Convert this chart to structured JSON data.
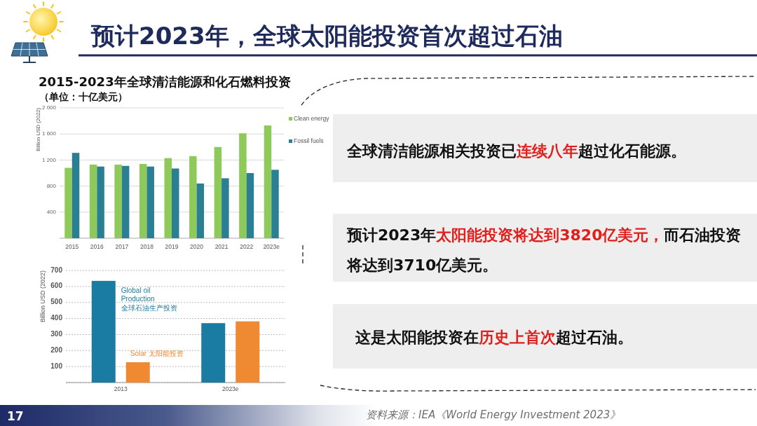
{
  "chart_data": [
    {
      "type": "other",
      "title": "预计2023年，全球太阳能投资首次超过石油",
      "annotations": [
        "17",
        "资料来源：IEA《World Energy Investment 2023》"
      ]
    },
    {
      "type": "bar",
      "title": "2015-2023年全球清洁能源和化石燃料投资",
      "subtitle": "（单位：十亿美元）",
      "ylabel": "Billion USD (2022)",
      "categories": [
        "2015",
        "2016",
        "2017",
        "2018",
        "2019",
        "2020",
        "2021",
        "2022",
        "2023e"
      ],
      "series": [
        {
          "name": "Clean energy",
          "color": "#8dca5a",
          "values": [
            1080,
            1130,
            1130,
            1140,
            1230,
            1260,
            1400,
            1610,
            1730
          ]
        },
        {
          "name": "Fossil fuels",
          "color": "#2b7f93",
          "values": [
            1310,
            1100,
            1110,
            1100,
            1070,
            840,
            920,
            1000,
            1050
          ]
        }
      ],
      "ylim": [
        0,
        2000
      ],
      "yticks": [
        {
          "value": 0,
          "label": null
        },
        400,
        800,
        {
          "value": 1200,
          "label": "1 200"
        },
        {
          "value": 1600,
          "label": "1 600"
        },
        {
          "value": 2000,
          "label": "2 000"
        }
      ],
      "grid": "y",
      "legend": "right"
    },
    {
      "type": "bar",
      "ylabel": "Billion USD (2022)",
      "categories": [
        "2013",
        "2023e"
      ],
      "series": [
        {
          "name": "Global oil\nProduction\n全球石油生产投资",
          "color": "#1b7ca3",
          "values": [
            635,
            371
          ]
        },
        {
          "name": "Solar 太阳能投资",
          "color": "#ef8a33",
          "values": [
            127,
            382
          ]
        }
      ],
      "ylim": [
        0,
        700
      ],
      "yticks": [
        {
          "value": 0,
          "label": null
        },
        100,
        200,
        300,
        400,
        500,
        600,
        700
      ],
      "grid": "y"
    },
    {
      "type": "other",
      "annotations": [
        "全球清洁能源相关投资已",
        "连续八年",
        "超过化石能源。"
      ],
      "colors": [
        "#111111",
        "#e0201c",
        "#111111"
      ]
    },
    {
      "type": "other",
      "annotations": [
        "预计2023年",
        "太阳能投资将达到3820亿美元，",
        "而石油投资",
        "将达到3710亿美元。"
      ],
      "colors": [
        "#111111",
        "#e0201c",
        "#111111",
        "#111111"
      ]
    },
    {
      "type": "other",
      "annotations": [
        "这是太阳能投资在",
        "历史上首次",
        "超过石油。"
      ],
      "colors": [
        "#111111",
        "#e0201c",
        "#111111"
      ]
    }
  ]
}
